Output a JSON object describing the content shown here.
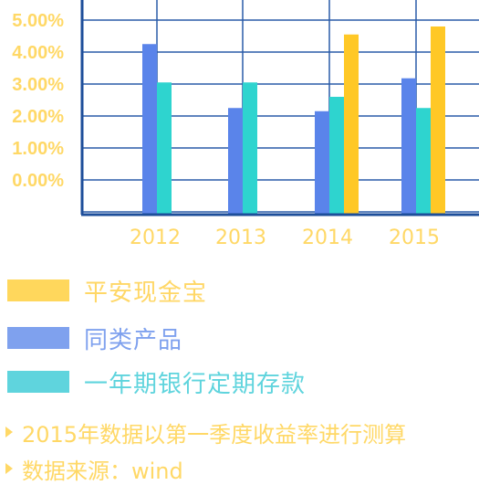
{
  "chart_data": {
    "type": "bar",
    "categories": [
      "2012",
      "2013",
      "2014",
      "2015"
    ],
    "series": [
      {
        "name": "平安现金宝",
        "values": [
          null,
          null,
          4.55,
          4.8
        ]
      },
      {
        "name": "同类产品",
        "values": [
          4.25,
          2.25,
          2.15,
          3.18
        ]
      },
      {
        "name": "一年期银行定期存款",
        "values": [
          3.05,
          3.05,
          2.6,
          2.25
        ]
      }
    ],
    "y_tick_labels": [
      "0.00%",
      "1.00%",
      "2.00%",
      "3.00%",
      "4.00%",
      "5.00%"
    ],
    "ylim": [
      0,
      5
    ],
    "grid": true,
    "legend_position": "bottom"
  },
  "colors": {
    "axis": "#1d4e9a",
    "grid": "#2a5ba8",
    "tick_label": "#ffd866",
    "series": [
      "#ffc826",
      "#5a84ea",
      "#2ed4cf"
    ],
    "legend_swatch": [
      "#ffd75c",
      "#7fa1ee",
      "#5fd4dd"
    ],
    "legend_text": [
      "#ffd766",
      "#7fa1ee",
      "#5fd4dd"
    ],
    "note_text": "#ffd866"
  },
  "legend": [
    {
      "label": "平安现金宝"
    },
    {
      "label": "同类产品"
    },
    {
      "label": "一年期银行定期存款"
    }
  ],
  "notes": [
    "2015年数据以第一季度收益率进行测算",
    "数据来源：wind"
  ]
}
